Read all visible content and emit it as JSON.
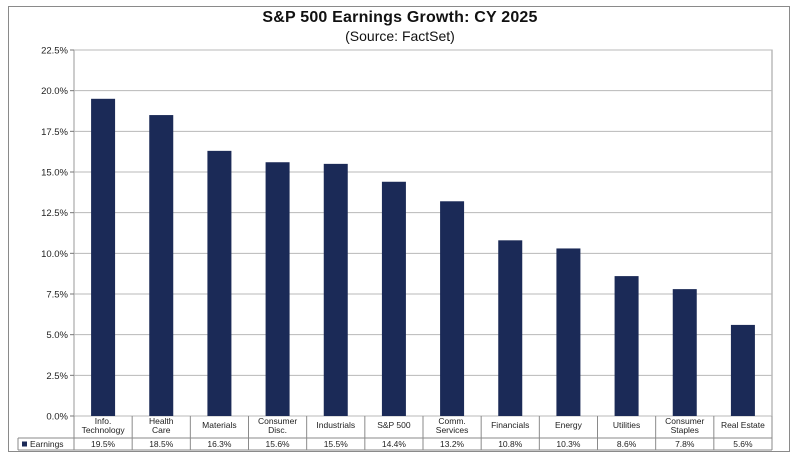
{
  "chart_data": {
    "type": "bar",
    "title": "S&P 500 Earnings Growth: CY 2025",
    "subtitle": "(Source: FactSet)",
    "xlabel": "",
    "ylabel": "",
    "ylim": [
      0,
      22.5
    ],
    "y_ticks": [
      "0.0%",
      "2.5%",
      "5.0%",
      "7.5%",
      "10.0%",
      "12.5%",
      "15.0%",
      "17.5%",
      "20.0%",
      "22.5%"
    ],
    "categories": [
      [
        "Info.",
        "Technology"
      ],
      [
        "Health",
        "Care"
      ],
      [
        "Materials"
      ],
      [
        "Consumer",
        "Disc."
      ],
      [
        "Industrials"
      ],
      [
        "S&P 500"
      ],
      [
        "Comm.",
        "Services"
      ],
      [
        "Financials"
      ],
      [
        "Energy"
      ],
      [
        "Utilities"
      ],
      [
        "Consumer",
        "Staples"
      ],
      [
        "Real Estate"
      ]
    ],
    "series": [
      {
        "name": "Earnings",
        "values": [
          19.5,
          18.5,
          16.3,
          15.6,
          15.5,
          14.4,
          13.2,
          10.8,
          10.3,
          8.6,
          7.8,
          5.6
        ],
        "labels": [
          "19.5%",
          "18.5%",
          "16.3%",
          "15.6%",
          "15.5%",
          "14.4%",
          "13.2%",
          "10.8%",
          "10.3%",
          "8.6%",
          "7.8%",
          "5.6%"
        ],
        "color": "#1b2a57"
      }
    ],
    "grid": true,
    "legend": "data-table-left"
  }
}
